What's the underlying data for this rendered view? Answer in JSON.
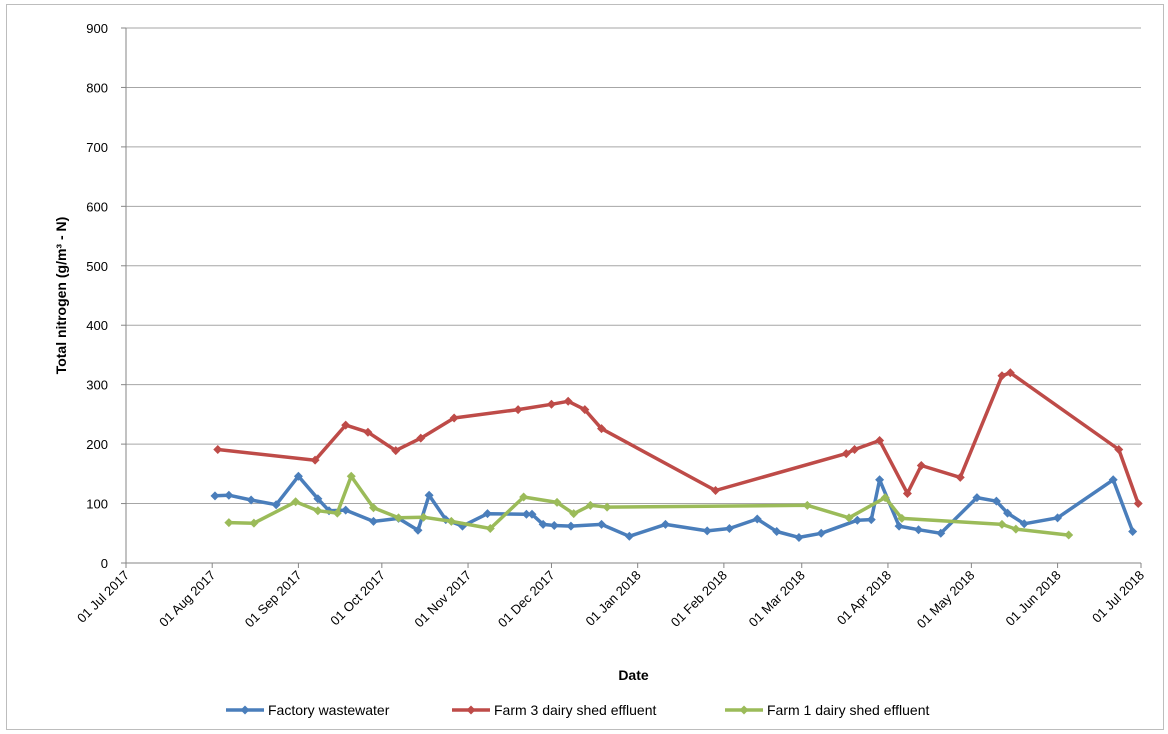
{
  "chart_data": {
    "type": "line",
    "title": "",
    "xlabel": "Date",
    "ylabel": "Total nitrogen (g/m³ - N)",
    "ylim": [
      0,
      900
    ],
    "yticks": [
      0,
      100,
      200,
      300,
      400,
      500,
      600,
      700,
      800,
      900
    ],
    "xlim": [
      "2017-07-01",
      "2018-07-01"
    ],
    "xticks": [
      {
        "date": "2017-07-01",
        "label": "01 Jul 2017"
      },
      {
        "date": "2017-08-01",
        "label": "01 Aug 2017"
      },
      {
        "date": "2017-09-01",
        "label": "01 Sep 2017"
      },
      {
        "date": "2017-10-01",
        "label": "01 Oct 2017"
      },
      {
        "date": "2017-11-01",
        "label": "01 Nov 2017"
      },
      {
        "date": "2017-12-01",
        "label": "01 Dec 2017"
      },
      {
        "date": "2018-01-01",
        "label": "01 Jan 2018"
      },
      {
        "date": "2018-02-01",
        "label": "01 Feb 2018"
      },
      {
        "date": "2018-03-01",
        "label": "01 Mar 2018"
      },
      {
        "date": "2018-04-01",
        "label": "01 Apr 2018"
      },
      {
        "date": "2018-05-01",
        "label": "01 May 2018"
      },
      {
        "date": "2018-06-01",
        "label": "01 Jun 2018"
      },
      {
        "date": "2018-07-01",
        "label": "01 Jul 2018"
      }
    ],
    "grid": true,
    "legend_position": "bottom",
    "series": [
      {
        "name": "Factory wastewater",
        "color": "#4a7ebb",
        "points": [
          [
            "2017-08-02",
            113
          ],
          [
            "2017-08-07",
            114
          ],
          [
            "2017-08-15",
            106
          ],
          [
            "2017-08-24",
            98
          ],
          [
            "2017-09-01",
            146
          ],
          [
            "2017-09-08",
            108
          ],
          [
            "2017-09-12",
            88
          ],
          [
            "2017-09-18",
            89
          ],
          [
            "2017-09-28",
            70
          ],
          [
            "2017-10-07",
            75
          ],
          [
            "2017-10-14",
            55
          ],
          [
            "2017-10-18",
            114
          ],
          [
            "2017-10-24",
            73
          ],
          [
            "2017-10-30",
            62
          ],
          [
            "2017-11-08",
            83
          ],
          [
            "2017-11-22",
            82
          ],
          [
            "2017-11-24",
            82
          ],
          [
            "2017-11-28",
            65
          ],
          [
            "2017-12-02",
            63
          ],
          [
            "2017-12-08",
            62
          ],
          [
            "2017-12-19",
            65
          ],
          [
            "2017-12-29",
            45
          ],
          [
            "2018-01-11",
            65
          ],
          [
            "2018-01-26",
            54
          ],
          [
            "2018-02-03",
            58
          ],
          [
            "2018-02-13",
            74
          ],
          [
            "2018-02-20",
            53
          ],
          [
            "2018-02-28",
            43
          ],
          [
            "2018-03-08",
            50
          ],
          [
            "2018-03-21",
            72
          ],
          [
            "2018-03-26",
            73
          ],
          [
            "2018-03-29",
            140
          ],
          [
            "2018-04-05",
            62
          ],
          [
            "2018-04-12",
            56
          ],
          [
            "2018-04-20",
            50
          ],
          [
            "2018-05-03",
            110
          ],
          [
            "2018-05-10",
            104
          ],
          [
            "2018-05-14",
            84
          ],
          [
            "2018-05-20",
            66
          ],
          [
            "2018-06-01",
            76
          ],
          [
            "2018-06-21",
            140
          ],
          [
            "2018-06-28",
            53
          ]
        ]
      },
      {
        "name": "Farm 3 dairy shed effluent",
        "color": "#be4b48",
        "points": [
          [
            "2017-08-03",
            191
          ],
          [
            "2017-09-07",
            173
          ],
          [
            "2017-09-18",
            232
          ],
          [
            "2017-09-26",
            220
          ],
          [
            "2017-10-06",
            189
          ],
          [
            "2017-10-15",
            210
          ],
          [
            "2017-10-27",
            244
          ],
          [
            "2017-11-19",
            258
          ],
          [
            "2017-12-01",
            267
          ],
          [
            "2017-12-07",
            272
          ],
          [
            "2017-12-13",
            258
          ],
          [
            "2017-12-19",
            226
          ],
          [
            "2018-01-29",
            122
          ],
          [
            "2018-03-17",
            184
          ],
          [
            "2018-03-20",
            191
          ],
          [
            "2018-03-29",
            206
          ],
          [
            "2018-04-08",
            117
          ],
          [
            "2018-04-13",
            164
          ],
          [
            "2018-04-27",
            144
          ],
          [
            "2018-05-12",
            315
          ],
          [
            "2018-05-15",
            320
          ],
          [
            "2018-06-23",
            191
          ],
          [
            "2018-06-30",
            100
          ]
        ]
      },
      {
        "name": "Farm 1 dairy shed effluent",
        "color": "#9bbb59",
        "points": [
          [
            "2017-08-07",
            68
          ],
          [
            "2017-08-16",
            67
          ],
          [
            "2017-08-31",
            103
          ],
          [
            "2017-09-08",
            88
          ],
          [
            "2017-09-15",
            84
          ],
          [
            "2017-09-20",
            146
          ],
          [
            "2017-09-28",
            93
          ],
          [
            "2017-10-07",
            76
          ],
          [
            "2017-10-16",
            77
          ],
          [
            "2017-10-26",
            70
          ],
          [
            "2017-11-09",
            58
          ],
          [
            "2017-11-21",
            111
          ],
          [
            "2017-12-03",
            102
          ],
          [
            "2017-12-09",
            83
          ],
          [
            "2017-12-15",
            97
          ],
          [
            "2017-12-21",
            94
          ],
          [
            "2018-03-03",
            97
          ],
          [
            "2018-03-18",
            76
          ],
          [
            "2018-03-31",
            110
          ],
          [
            "2018-04-06",
            75
          ],
          [
            "2018-05-12",
            65
          ],
          [
            "2018-05-17",
            57
          ],
          [
            "2018-06-05",
            47
          ]
        ]
      }
    ]
  }
}
